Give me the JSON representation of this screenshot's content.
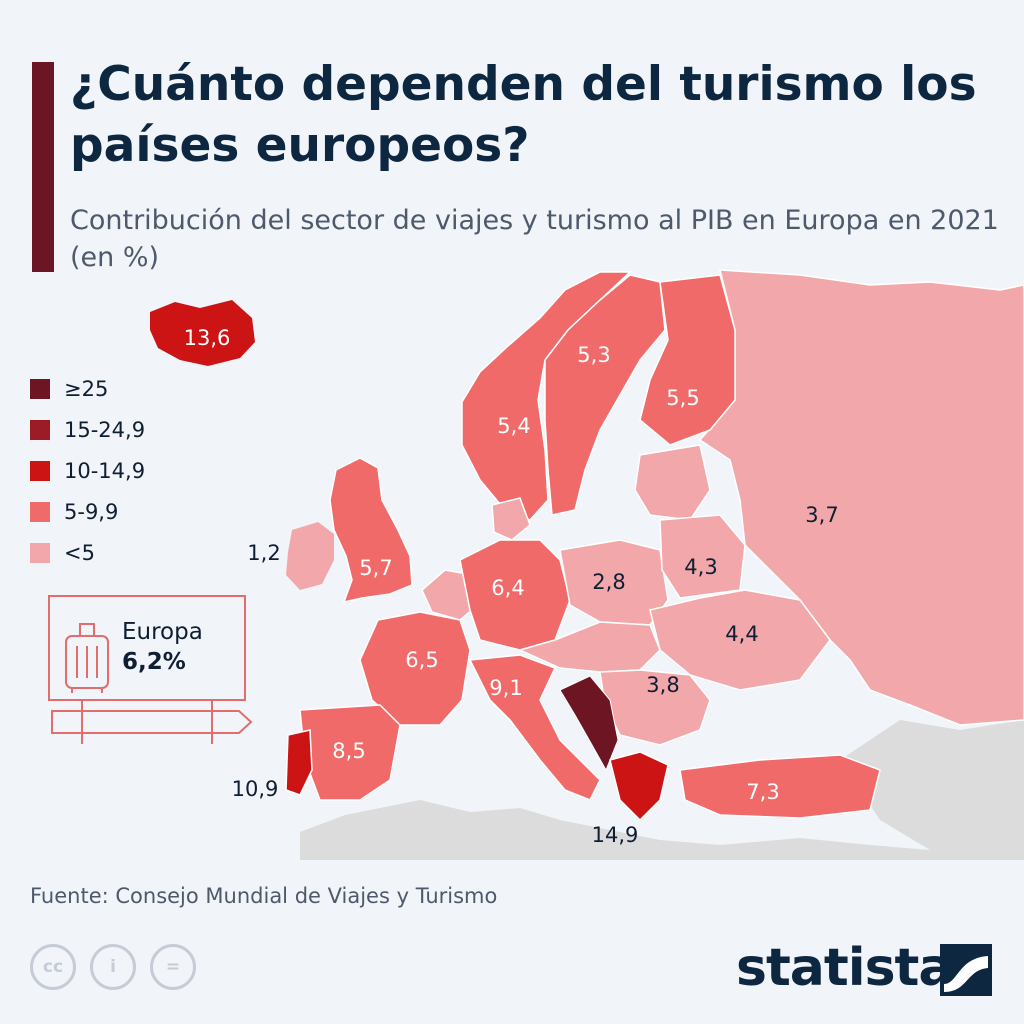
{
  "header": {
    "title": "¿Cuánto dependen del turismo los países europeos?",
    "subtitle": "Contribución del sector de viajes y turismo al PIB en Europa en 2021 (en %)"
  },
  "colors": {
    "accent": "#6c1525",
    "background": "#f1f4f8",
    "no_data": "#dcdcdc",
    "bins": [
      "#6e1524",
      "#9b1c24",
      "#cc1414",
      "#ef6a69",
      "#f2a8aa"
    ]
  },
  "legend": {
    "items": [
      {
        "label": "≥25",
        "color": "#6e1524"
      },
      {
        "label": "15-24,9",
        "color": "#9b1c24"
      },
      {
        "label": "10-14,9",
        "color": "#cc1414"
      },
      {
        "label": "5-9,9",
        "color": "#ef6a69"
      },
      {
        "label": "<5",
        "color": "#f2a8aa"
      }
    ]
  },
  "europe_sign": {
    "label": "Europa",
    "value": "6,2%",
    "icon": "suitcase-icon"
  },
  "map": {
    "labels": [
      {
        "id": "iceland",
        "value": "13,6"
      },
      {
        "id": "ireland",
        "value": "1,2"
      },
      {
        "id": "uk",
        "value": "5,7"
      },
      {
        "id": "norway",
        "value": "5,4"
      },
      {
        "id": "sweden",
        "value": "5,3"
      },
      {
        "id": "finland",
        "value": "5,5"
      },
      {
        "id": "russia",
        "value": "3,7"
      },
      {
        "id": "germany",
        "value": "6,4"
      },
      {
        "id": "poland",
        "value": "2,8"
      },
      {
        "id": "belarus",
        "value": "4,3"
      },
      {
        "id": "ukraine",
        "value": "4,4"
      },
      {
        "id": "france",
        "value": "6,5"
      },
      {
        "id": "romania",
        "value": "3,8"
      },
      {
        "id": "italy",
        "value": "9,1"
      },
      {
        "id": "spain",
        "value": "8,5"
      },
      {
        "id": "portugal",
        "value": "10,9"
      },
      {
        "id": "turkey",
        "value": "7,3"
      },
      {
        "id": "greece",
        "value": "14,9"
      }
    ]
  },
  "footer": {
    "source": "Fuente: Consejo Mundial de Viajes y Turismo",
    "brand": "statista",
    "cc_icons": [
      {
        "name": "cc-icon",
        "text": "cc"
      },
      {
        "name": "attribution-icon",
        "text": "i"
      },
      {
        "name": "no-derivatives-icon",
        "text": "="
      }
    ]
  }
}
